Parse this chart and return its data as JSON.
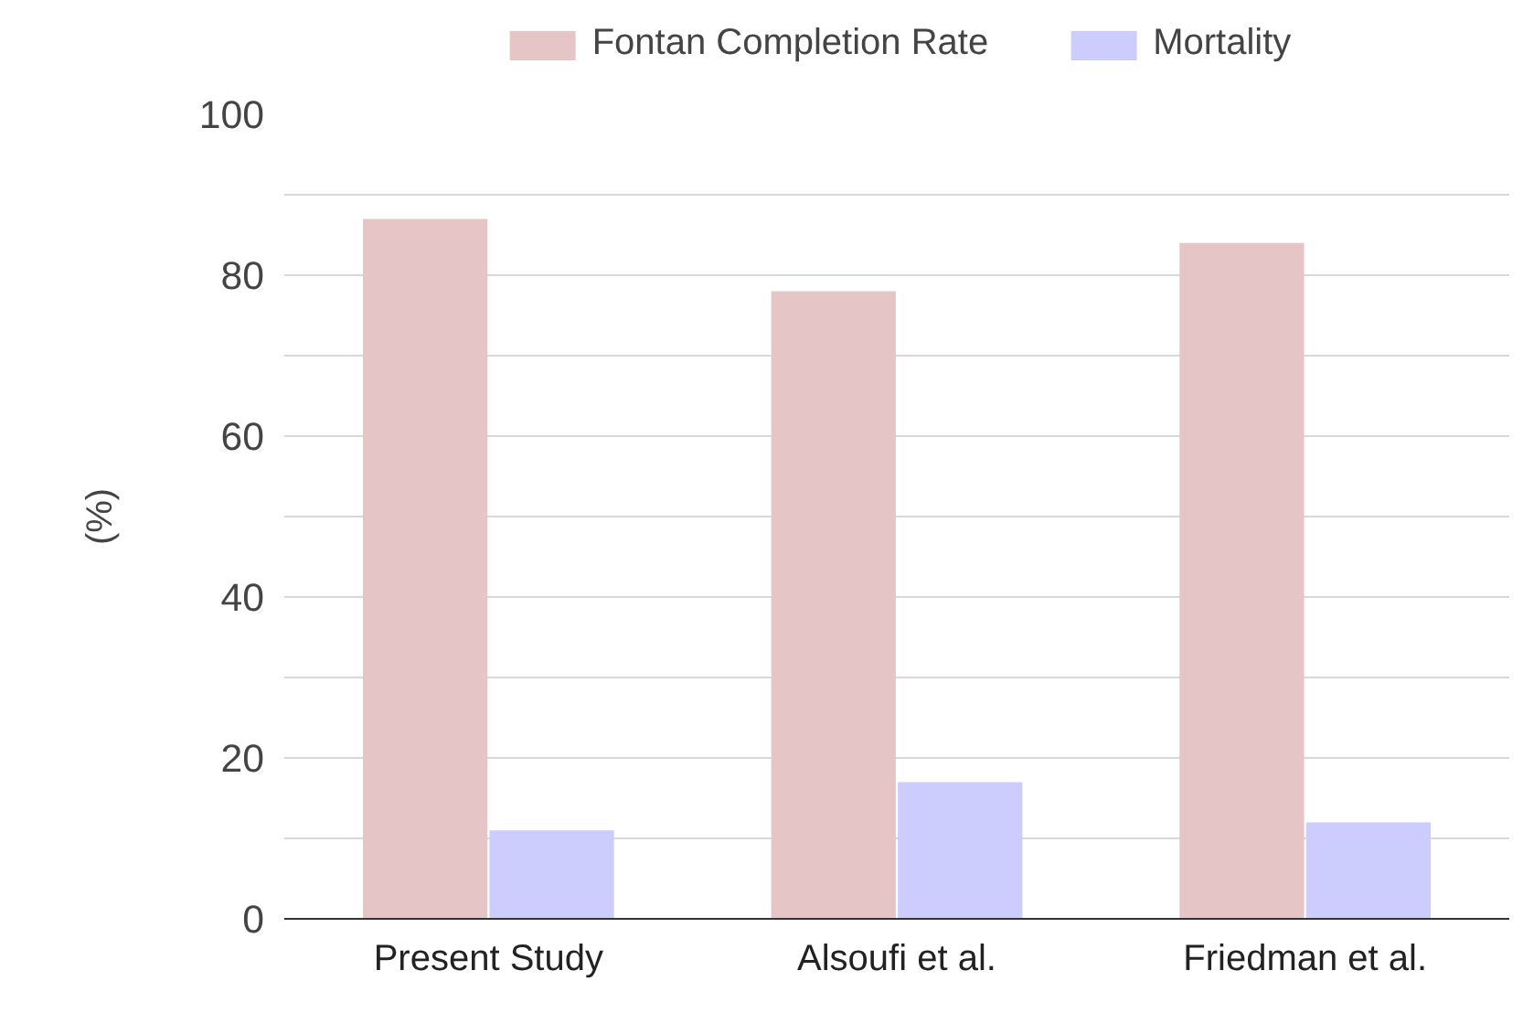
{
  "chart_data": {
    "type": "bar",
    "ylabel": "(%)",
    "categories": [
      "Present Study",
      "Alsoufi et al.",
      "Friedman et al."
    ],
    "series": [
      {
        "name": "Fontan Completion Rate",
        "color": "#e6c5c7",
        "values": [
          87,
          78,
          84
        ]
      },
      {
        "name": "Mortality",
        "color": "#cccdfd",
        "values": [
          11,
          17,
          12
        ]
      }
    ],
    "ylim": [
      0,
      100
    ],
    "yticks": [
      0,
      {
        "value": 10,
        "label": null
      },
      20,
      {
        "value": 30,
        "label": null
      },
      40,
      {
        "value": 50,
        "label": null
      },
      60,
      {
        "value": 70,
        "label": null
      },
      80,
      {
        "value": 90,
        "label": null
      },
      100
    ],
    "grid": "y",
    "legend": "top"
  }
}
